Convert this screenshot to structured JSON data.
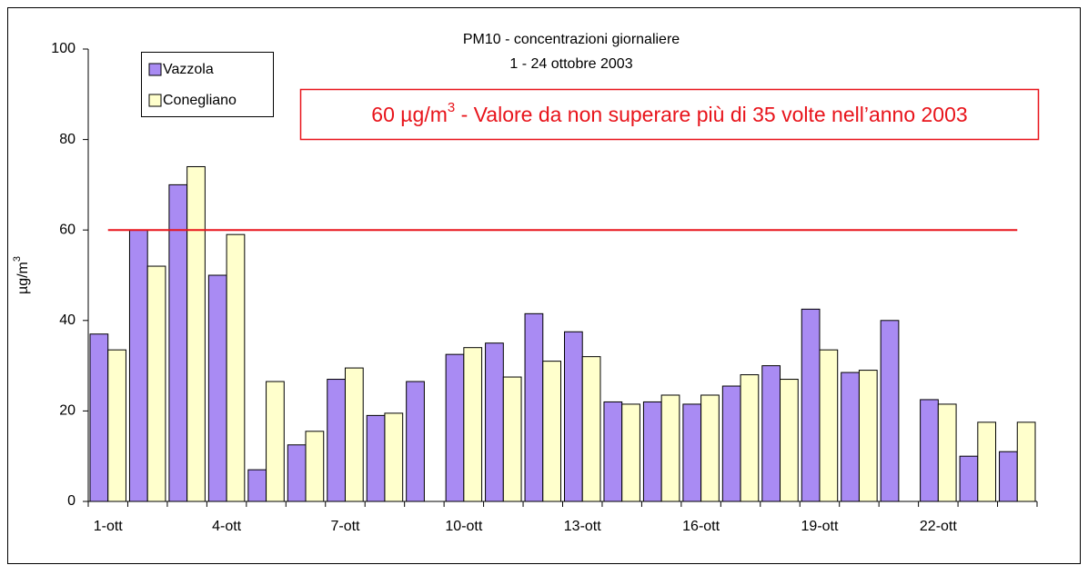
{
  "chart_data": {
    "type": "bar",
    "title": "PM10 - concentrazioni giornaliere",
    "subtitle": "1 - 24 ottobre 2003",
    "ylabel": "µg/m",
    "ylabel_sup": "3",
    "annotation": {
      "text": "60 µg/m",
      "sup": "3",
      "rest": " - Valore da non superare più di 35 volte nell’anno 2003"
    },
    "threshold": 60,
    "threshold_color": "#e8141b",
    "categories": [
      "1-ott",
      null,
      null,
      "4-ott",
      null,
      null,
      "7-ott",
      null,
      null,
      "10-ott",
      null,
      null,
      "13-ott",
      null,
      null,
      "16-ott",
      null,
      null,
      "19-ott",
      null,
      null,
      "22-ott",
      null,
      null
    ],
    "series": [
      {
        "name": "Vazzola",
        "color": "#a98bf3",
        "values": [
          37,
          60,
          70,
          50,
          7,
          12.5,
          27,
          19,
          26.5,
          32.5,
          35,
          41.5,
          37.5,
          22,
          22,
          21.5,
          25.5,
          30,
          42.5,
          28.5,
          40,
          22.5,
          10,
          11
        ]
      },
      {
        "name": "Conegliano",
        "color": "#ffffcc",
        "values": [
          33.5,
          52,
          74,
          59,
          26.5,
          15.5,
          29.5,
          19.5,
          null,
          34,
          27.5,
          31,
          32,
          21.5,
          23.5,
          23.5,
          28,
          27,
          33.5,
          29,
          null,
          21.5,
          17.5,
          17.5
        ]
      }
    ],
    "ylim": [
      0,
      100
    ],
    "yticks": [
      0,
      20,
      40,
      60,
      80,
      100
    ],
    "legend": "top-left"
  }
}
